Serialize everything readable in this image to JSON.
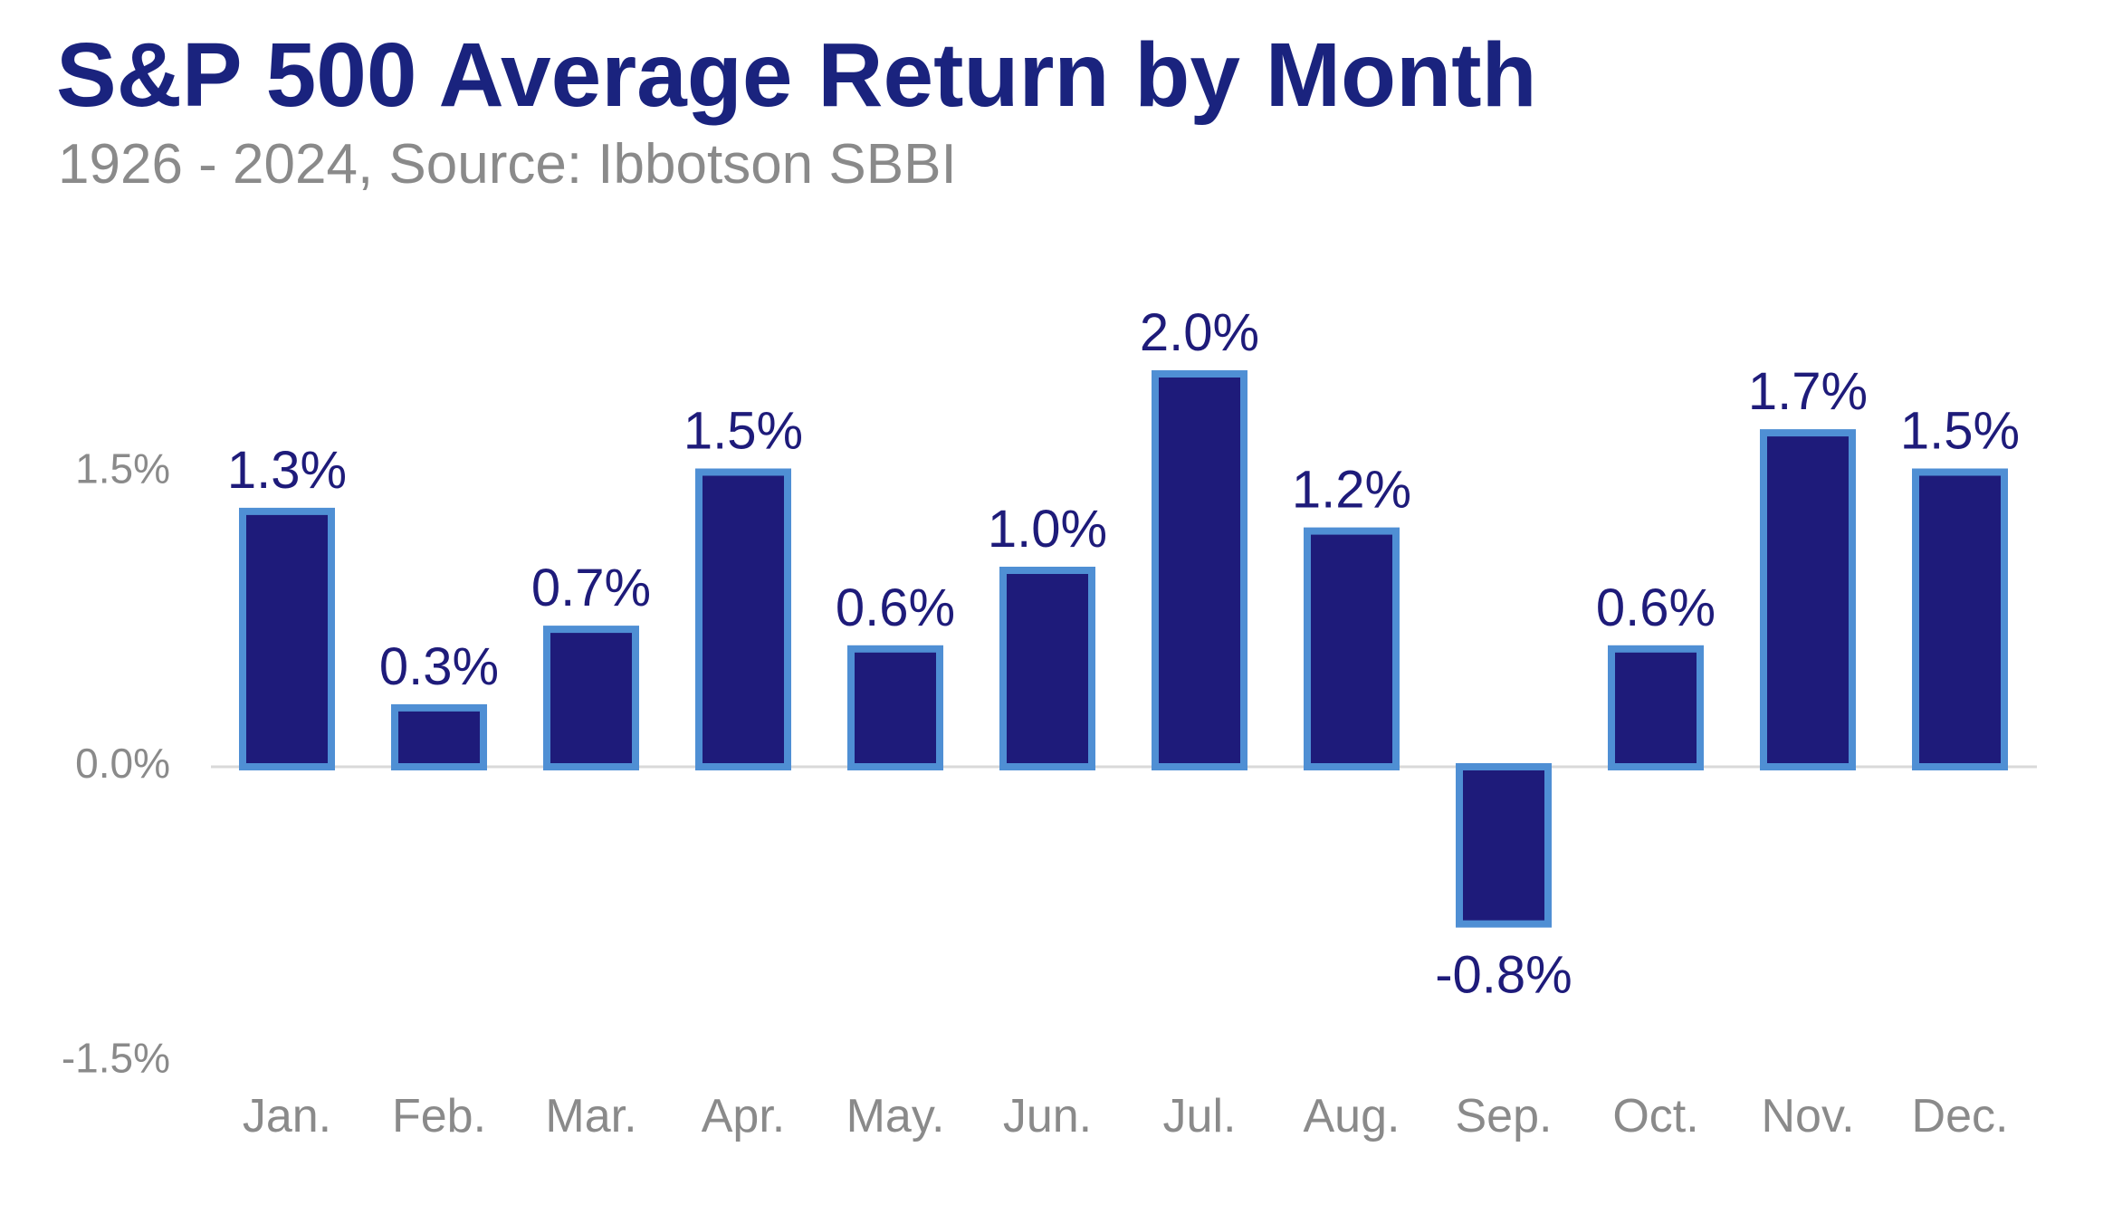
{
  "header": {
    "title": "S&P 500 Average Return by Month",
    "subtitle": "1926 - 2024, Source: Ibbotson SBBI"
  },
  "colors": {
    "title": "#1a237e",
    "subtitle": "#8a8a8a",
    "bar_fill": "#1e1b7a",
    "bar_stroke": "#4f8fd4",
    "axis_text": "#8a8a8a",
    "data_label": "#1e1b7a",
    "zero_line": "#d9d9d9"
  },
  "chart_data": {
    "type": "bar",
    "title": "S&P 500 Average Return by Month",
    "subtitle": "1926 - 2024, Source: Ibbotson SBBI",
    "categories": [
      "Jan.",
      "Feb.",
      "Mar.",
      "Apr.",
      "May.",
      "Jun.",
      "Jul.",
      "Aug.",
      "Sep.",
      "Oct.",
      "Nov.",
      "Dec."
    ],
    "values": [
      1.3,
      0.3,
      0.7,
      1.5,
      0.6,
      1.0,
      2.0,
      1.2,
      -0.8,
      0.6,
      1.7,
      1.5
    ],
    "data_labels": [
      "1.3%",
      "0.3%",
      "0.7%",
      "1.5%",
      "0.6%",
      "1.0%",
      "2.0%",
      "1.2%",
      "-0.8%",
      "0.6%",
      "1.7%",
      "1.5%"
    ],
    "y_ticks": [
      1.5,
      0.0,
      -1.5
    ],
    "y_tick_labels": [
      "1.5%",
      "0.0%",
      "-1.5%"
    ],
    "ylim": [
      -1.5,
      2.2
    ],
    "xlabel": "",
    "ylabel": "",
    "grid": false,
    "legend": "none"
  }
}
